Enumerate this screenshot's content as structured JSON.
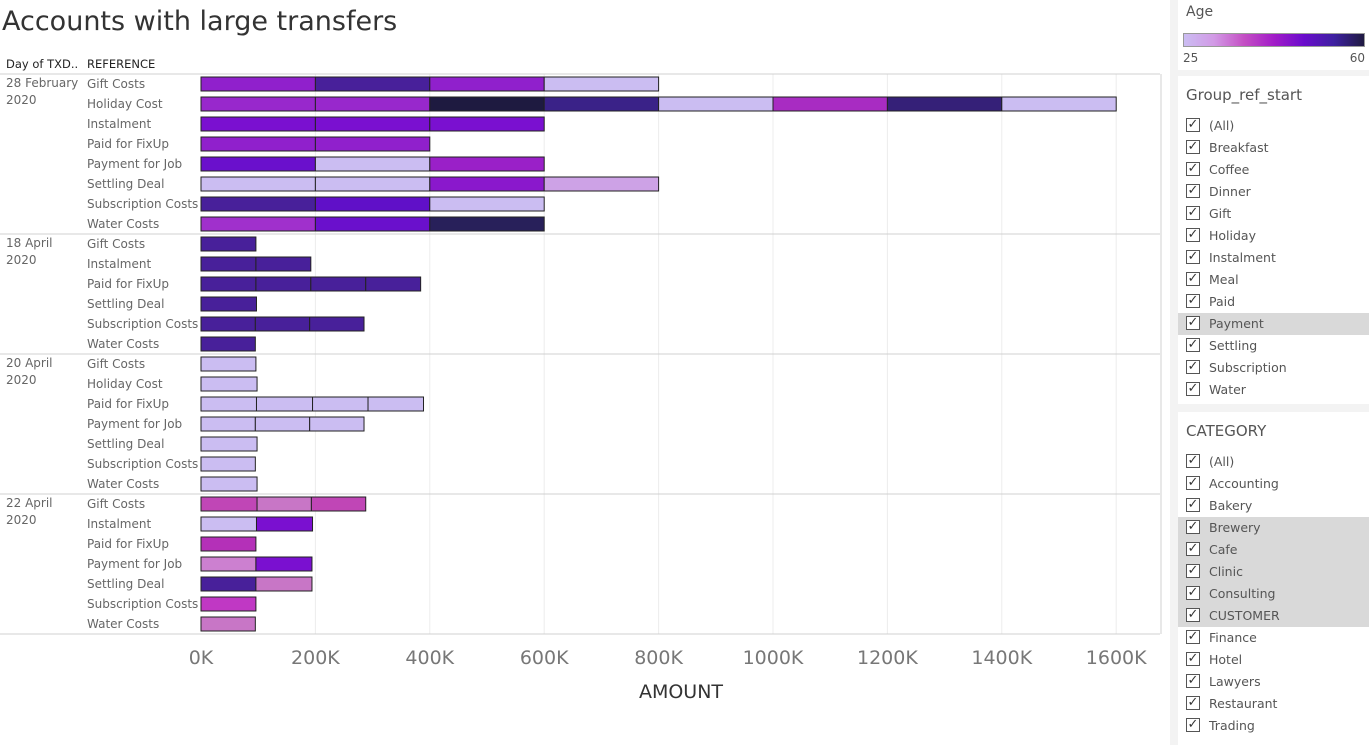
{
  "title": "Accounts with large transfers",
  "columns": {
    "day": "Day of TXD..",
    "reference": "REFERENCE"
  },
  "chart_data": {
    "type": "bar",
    "orientation": "horizontal-stacked",
    "xlabel": "AMOUNT",
    "xlim": [
      0,
      1680000
    ],
    "xticks": [
      {
        "v": 0,
        "label": "0K"
      },
      {
        "v": 200000,
        "label": "200K"
      },
      {
        "v": 400000,
        "label": "400K"
      },
      {
        "v": 600000,
        "label": "600K"
      },
      {
        "v": 800000,
        "label": "800K"
      },
      {
        "v": 1000000,
        "label": "1000K"
      },
      {
        "v": 1200000,
        "label": "1200K"
      },
      {
        "v": 1400000,
        "label": "1400K"
      },
      {
        "v": 1600000,
        "label": "1600K"
      }
    ],
    "color_encoding": "Age",
    "groups": [
      {
        "day": [
          "28 February",
          "2020"
        ],
        "rows": [
          {
            "ref": "Gift Costs",
            "segments": [
              {
                "v": 200000,
                "c": "#9020cc"
              },
              {
                "v": 200000,
                "c": "#48209a"
              },
              {
                "v": 200000,
                "c": "#9020cc"
              },
              {
                "v": 200000,
                "c": "#cbbdf2"
              }
            ]
          },
          {
            "ref": "Holiday Cost",
            "segments": [
              {
                "v": 200000,
                "c": "#9828cc"
              },
              {
                "v": 200000,
                "c": "#9828cc"
              },
              {
                "v": 200000,
                "c": "#1e1a40"
              },
              {
                "v": 200000,
                "c": "#3a2288"
              },
              {
                "v": 200000,
                "c": "#cbbdf2"
              },
              {
                "v": 200000,
                "c": "#a82cc2"
              },
              {
                "v": 200000,
                "c": "#352078"
              },
              {
                "v": 200000,
                "c": "#cbbdf2"
              }
            ]
          },
          {
            "ref": "Instalment",
            "segments": [
              {
                "v": 200000,
                "c": "#7a10d0"
              },
              {
                "v": 200000,
                "c": "#7a10d0"
              },
              {
                "v": 200000,
                "c": "#7a10d0"
              }
            ]
          },
          {
            "ref": "Paid for FixUp",
            "segments": [
              {
                "v": 200000,
                "c": "#9020cc"
              },
              {
                "v": 200000,
                "c": "#9020cc"
              }
            ]
          },
          {
            "ref": "Payment for Job",
            "segments": [
              {
                "v": 200000,
                "c": "#6a10cc"
              },
              {
                "v": 200000,
                "c": "#cbbdf2"
              },
              {
                "v": 200000,
                "c": "#9a20c8"
              }
            ]
          },
          {
            "ref": "Settling Deal",
            "segments": [
              {
                "v": 200000,
                "c": "#cbbdf2"
              },
              {
                "v": 200000,
                "c": "#cbbdf2"
              },
              {
                "v": 200000,
                "c": "#8a18cc"
              },
              {
                "v": 200000,
                "c": "#cda2e6"
              }
            ]
          },
          {
            "ref": "Subscription Costs",
            "segments": [
              {
                "v": 200000,
                "c": "#48209a"
              },
              {
                "v": 200000,
                "c": "#6010c8"
              },
              {
                "v": 200000,
                "c": "#cbbdf2"
              }
            ]
          },
          {
            "ref": "Water Costs",
            "segments": [
              {
                "v": 200000,
                "c": "#a030cc"
              },
              {
                "v": 200000,
                "c": "#6a10cc"
              },
              {
                "v": 200000,
                "c": "#28205a"
              }
            ]
          }
        ]
      },
      {
        "day": [
          "18 April",
          "2020"
        ],
        "rows": [
          {
            "ref": "Gift Costs",
            "segments": [
              {
                "v": 96000,
                "c": "#48209a"
              }
            ]
          },
          {
            "ref": "Instalment",
            "segments": [
              {
                "v": 96000,
                "c": "#48209a"
              },
              {
                "v": 96000,
                "c": "#48209a"
              }
            ]
          },
          {
            "ref": "Paid for FixUp",
            "segments": [
              {
                "v": 96000,
                "c": "#48209a"
              },
              {
                "v": 96000,
                "c": "#48209a"
              },
              {
                "v": 96000,
                "c": "#48209a"
              },
              {
                "v": 96000,
                "c": "#48209a"
              }
            ]
          },
          {
            "ref": "Settling Deal",
            "segments": [
              {
                "v": 97000,
                "c": "#48209a"
              }
            ]
          },
          {
            "ref": "Subscription Costs",
            "segments": [
              {
                "v": 95000,
                "c": "#48209a"
              },
              {
                "v": 95000,
                "c": "#48209a"
              },
              {
                "v": 95000,
                "c": "#48209a"
              }
            ]
          },
          {
            "ref": "Water Costs",
            "segments": [
              {
                "v": 95000,
                "c": "#48209a"
              }
            ]
          }
        ]
      },
      {
        "day": [
          "20 April",
          "2020"
        ],
        "rows": [
          {
            "ref": "Gift Costs",
            "segments": [
              {
                "v": 96000,
                "c": "#cbbdf2"
              }
            ]
          },
          {
            "ref": "Holiday Cost",
            "segments": [
              {
                "v": 98000,
                "c": "#cbbdf2"
              }
            ]
          },
          {
            "ref": "Paid for FixUp",
            "segments": [
              {
                "v": 97000,
                "c": "#cbbdf2"
              },
              {
                "v": 98000,
                "c": "#cbbdf2"
              },
              {
                "v": 97000,
                "c": "#cbbdf2"
              },
              {
                "v": 97000,
                "c": "#cbbdf2"
              }
            ]
          },
          {
            "ref": "Payment for Job",
            "segments": [
              {
                "v": 95000,
                "c": "#cbbdf2"
              },
              {
                "v": 95000,
                "c": "#cbbdf2"
              },
              {
                "v": 95000,
                "c": "#cbbdf2"
              }
            ]
          },
          {
            "ref": "Settling Deal",
            "segments": [
              {
                "v": 98000,
                "c": "#cbbdf2"
              }
            ]
          },
          {
            "ref": "Subscription Costs",
            "segments": [
              {
                "v": 95000,
                "c": "#cbbdf2"
              }
            ]
          },
          {
            "ref": "Water Costs",
            "segments": [
              {
                "v": 98000,
                "c": "#cbbdf2"
              }
            ]
          }
        ]
      },
      {
        "day": [
          "22 April",
          "2020"
        ],
        "rows": [
          {
            "ref": "Gift Costs",
            "segments": [
              {
                "v": 98000,
                "c": "#c046b6"
              },
              {
                "v": 95000,
                "c": "#c876c6"
              },
              {
                "v": 95000,
                "c": "#c046b6"
              }
            ]
          },
          {
            "ref": "Instalment",
            "segments": [
              {
                "v": 97000,
                "c": "#cbbdf2"
              },
              {
                "v": 98000,
                "c": "#7a10d0"
              }
            ]
          },
          {
            "ref": "Paid for FixUp",
            "segments": [
              {
                "v": 96000,
                "c": "#b430b8"
              }
            ]
          },
          {
            "ref": "Payment for Job",
            "segments": [
              {
                "v": 96000,
                "c": "#cc80d0"
              },
              {
                "v": 98000,
                "c": "#7a10d0"
              }
            ]
          },
          {
            "ref": "Settling Deal",
            "segments": [
              {
                "v": 96000,
                "c": "#48209a"
              },
              {
                "v": 98000,
                "c": "#c876c6"
              }
            ]
          },
          {
            "ref": "Subscription Costs",
            "segments": [
              {
                "v": 96000,
                "c": "#c038c4"
              }
            ]
          },
          {
            "ref": "Water Costs",
            "segments": [
              {
                "v": 95000,
                "c": "#c876c6"
              }
            ]
          }
        ]
      }
    ]
  },
  "legend": {
    "title": "Age",
    "min": "25",
    "max": "60",
    "colors": [
      "#cbbdf2",
      "#d29ae6",
      "#c44fc4",
      "#a21cc8",
      "#6a0ccc",
      "#3d20a0",
      "#1e1a40"
    ]
  },
  "filter_group_ref": {
    "title": "Group_ref_start",
    "items": [
      {
        "label": "(All)",
        "checked": true
      },
      {
        "label": "Breakfast",
        "checked": true
      },
      {
        "label": "Coffee",
        "checked": true
      },
      {
        "label": "Dinner",
        "checked": true
      },
      {
        "label": "Gift",
        "checked": true
      },
      {
        "label": "Holiday",
        "checked": true
      },
      {
        "label": "Instalment",
        "checked": true
      },
      {
        "label": "Meal",
        "checked": true
      },
      {
        "label": "Paid",
        "checked": true
      },
      {
        "label": "Payment",
        "checked": true,
        "highlight": true
      },
      {
        "label": "Settling",
        "checked": true
      },
      {
        "label": "Subscription",
        "checked": true
      },
      {
        "label": "Water",
        "checked": true
      }
    ]
  },
  "filter_category": {
    "title": "CATEGORY",
    "items": [
      {
        "label": "(All)",
        "checked": true
      },
      {
        "label": "Accounting",
        "checked": true
      },
      {
        "label": "Bakery",
        "checked": true
      },
      {
        "label": "Brewery",
        "checked": true,
        "highlight": true
      },
      {
        "label": "Cafe",
        "checked": true,
        "highlight": true
      },
      {
        "label": "Clinic",
        "checked": true,
        "highlight": true
      },
      {
        "label": "Consulting",
        "checked": true,
        "highlight": true
      },
      {
        "label": "CUSTOMER",
        "checked": true,
        "highlight": true
      },
      {
        "label": "Finance",
        "checked": true
      },
      {
        "label": "Hotel",
        "checked": true
      },
      {
        "label": "Lawyers",
        "checked": true
      },
      {
        "label": "Restaurant",
        "checked": true
      },
      {
        "label": "Trading",
        "checked": true
      }
    ]
  }
}
